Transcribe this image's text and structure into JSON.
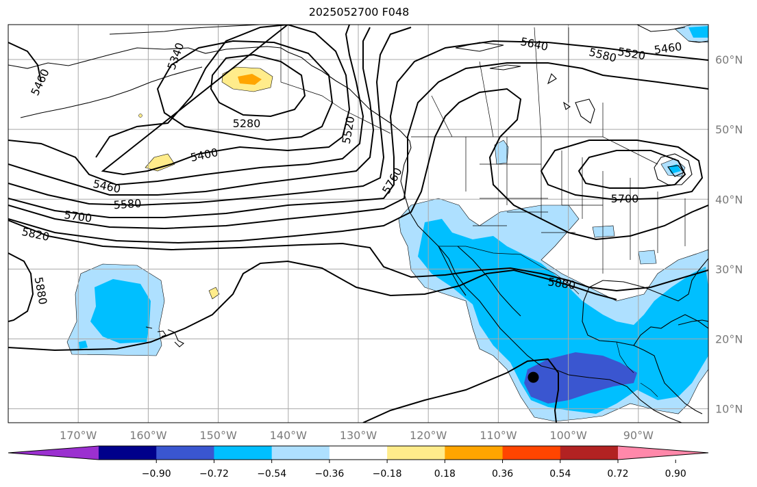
{
  "title": "2025052700 F048",
  "colors": {
    "ocean": "#ffffff",
    "grid": "#a8a8a8",
    "coast": "#000000",
    "contour": "#000000",
    "lat_label": "#7a7a7a",
    "lon_label": "#7a7a7a",
    "marker": "#000000"
  },
  "map": {
    "lon_range": [
      -180,
      -80
    ],
    "lat_range": [
      8,
      65
    ],
    "lat_labels": [
      "60°N",
      "50°N",
      "40°N",
      "30°N",
      "20°N",
      "10°N"
    ],
    "lon_labels": [
      "170°W",
      "160°W",
      "150°W",
      "140°W",
      "130°W",
      "120°W",
      "110°W",
      "100°W",
      "90°W"
    ],
    "contour_labels": [
      "5640",
      "5580",
      "5520",
      "5460",
      "5340",
      "5460",
      "5280",
      "5520",
      "5400",
      "5760",
      "5460",
      "5580",
      "5700",
      "5700",
      "5820",
      "5880",
      "5880"
    ],
    "marker": {
      "lon": -105,
      "lat": 14.5
    }
  },
  "colorbar": {
    "tick_labels": [
      "−0.90",
      "−0.72",
      "−0.54",
      "−0.36",
      "−0.18",
      "0.18",
      "0.36",
      "0.54",
      "0.72",
      "0.90"
    ],
    "colors": [
      "#9b30d0",
      "#00008b",
      "#3a56d0",
      "#00bfff",
      "#aee0ff",
      "#ffffff",
      "#ffec8b",
      "#ffa500",
      "#ff4500",
      "#b22222",
      "#ff88aa"
    ]
  }
}
